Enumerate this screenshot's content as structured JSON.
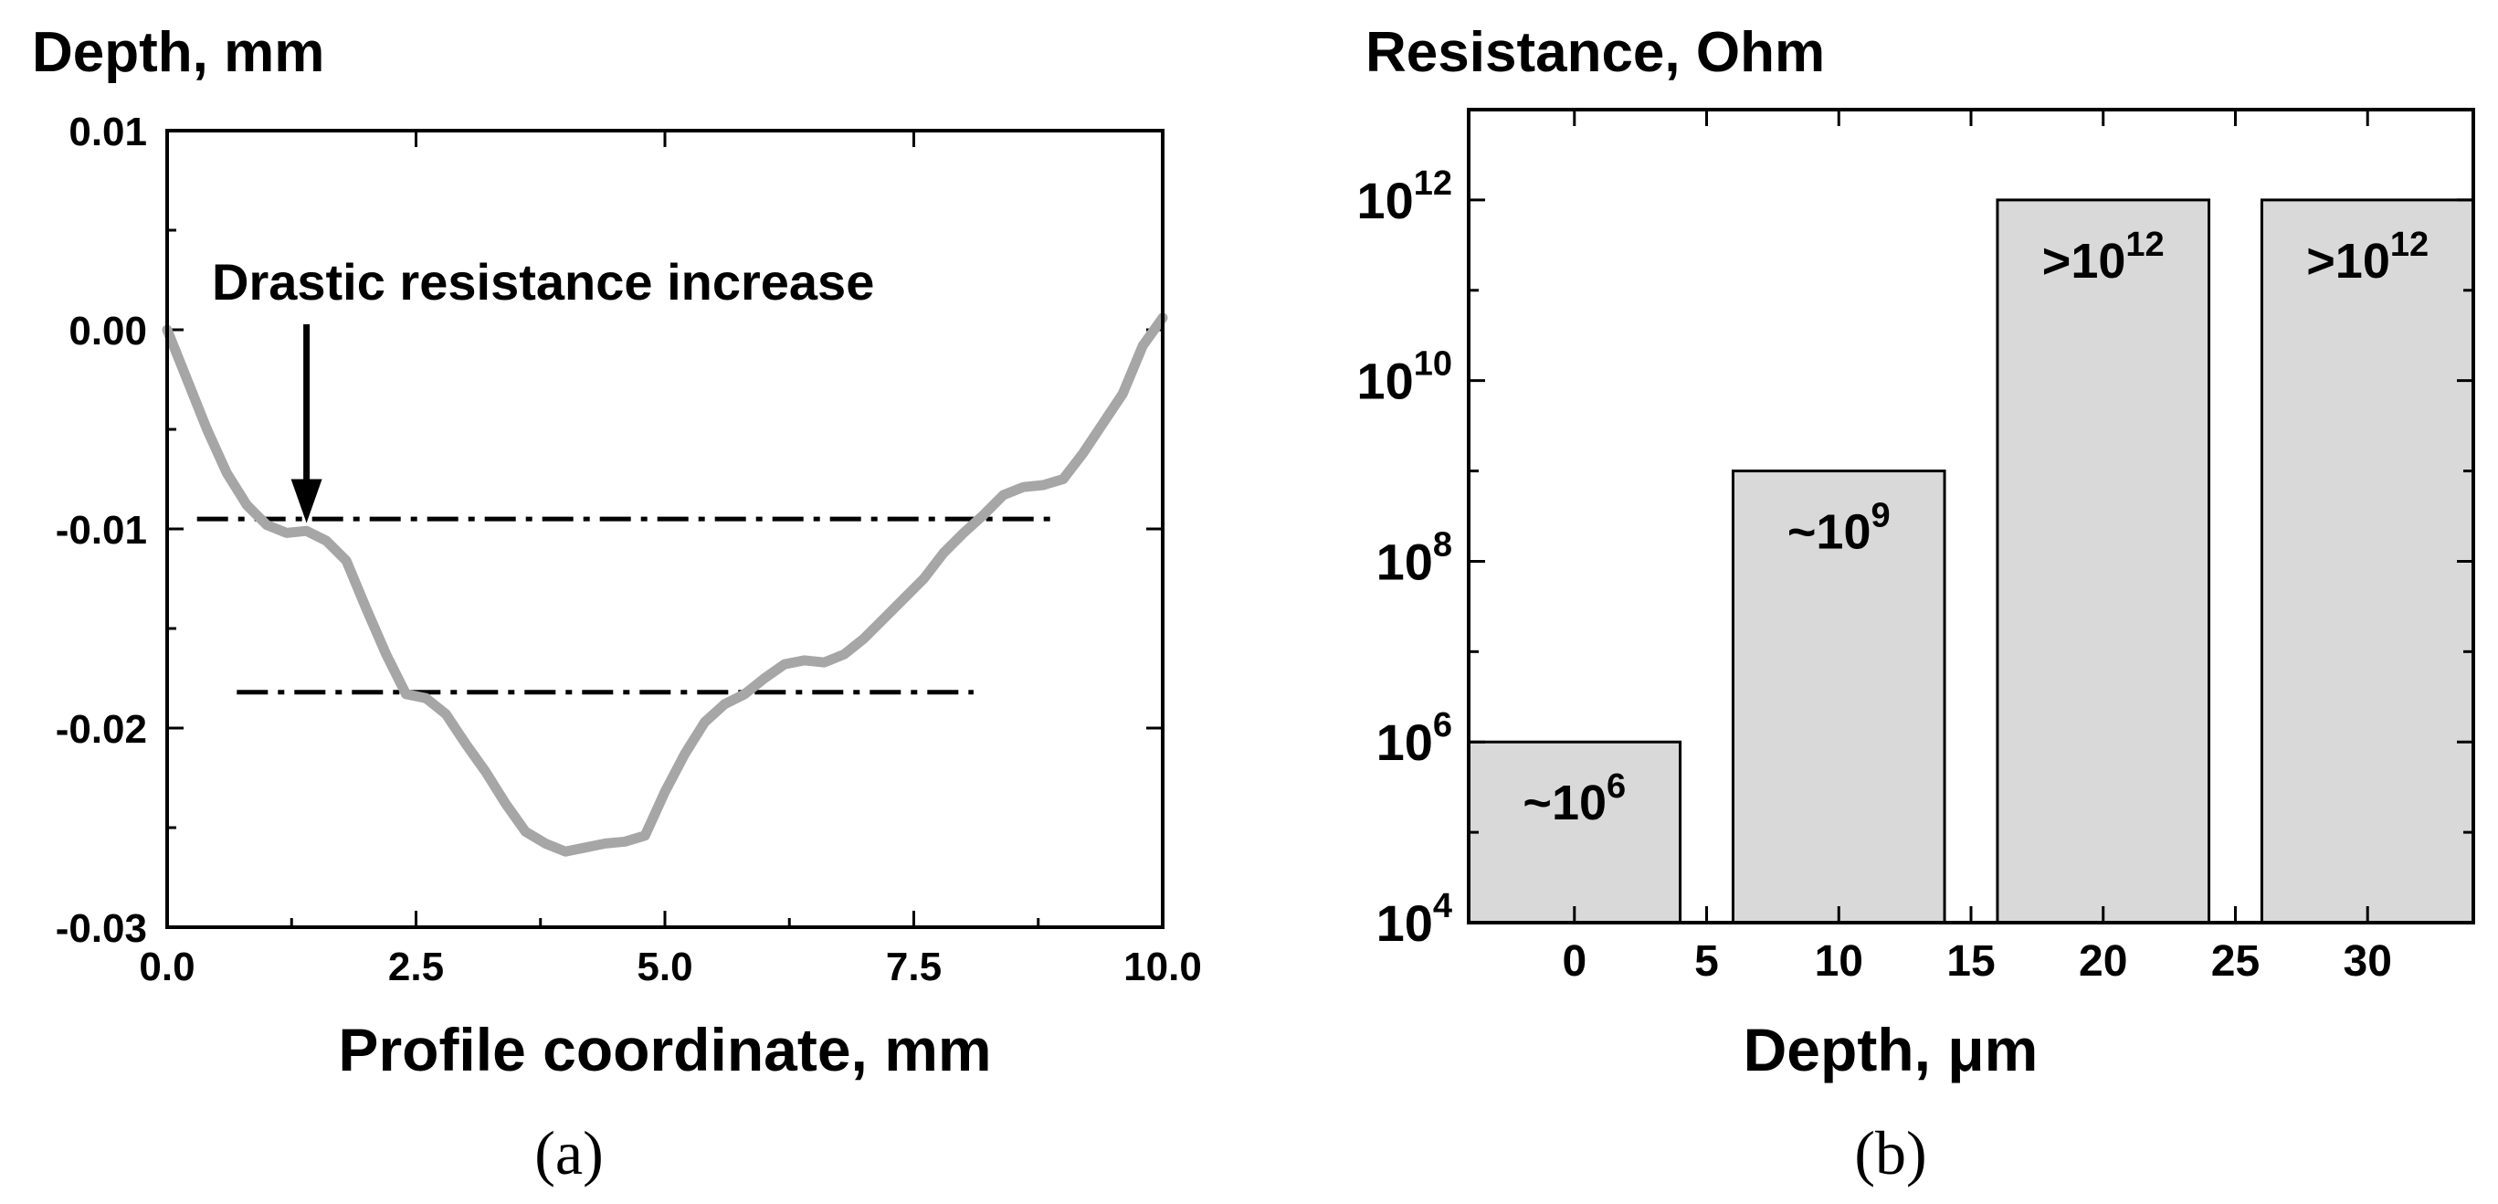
{
  "chart_data": [
    {
      "type": "line",
      "panel_label": "(a)",
      "title": "Depth, mm",
      "xlabel": "Profile coordinate, mm",
      "ylabel": "Depth, mm",
      "xlim": [
        0,
        10
      ],
      "ylim": [
        -0.03,
        0.01
      ],
      "xticks": [
        "0.0",
        "2.5",
        "5.0",
        "7.5",
        "10.0"
      ],
      "xtick_values": [
        0,
        2.5,
        5,
        7.5,
        10
      ],
      "yticks": [
        "0.01",
        "0.00",
        "-0.01",
        "-0.02",
        "-0.03"
      ],
      "ytick_values": [
        0.01,
        0,
        -0.01,
        -0.02,
        -0.03
      ],
      "series": [
        {
          "name": "profile",
          "color": "#a6a6a6",
          "x": [
            0,
            0.2,
            0.4,
            0.6,
            0.8,
            1.0,
            1.2,
            1.4,
            1.6,
            1.8,
            2.0,
            2.2,
            2.4,
            2.6,
            2.8,
            3.0,
            3.2,
            3.4,
            3.6,
            3.8,
            4.0,
            4.2,
            4.4,
            4.6,
            4.8,
            5.0,
            5.2,
            5.4,
            5.6,
            5.8,
            6.0,
            6.2,
            6.4,
            6.6,
            6.8,
            7.0,
            7.2,
            7.4,
            7.6,
            7.8,
            8.0,
            8.2,
            8.4,
            8.6,
            8.8,
            9.0,
            9.2,
            9.4,
            9.6,
            9.8,
            10.0
          ],
          "y": [
            0.0,
            -0.0025,
            -0.005,
            -0.0072,
            -0.0088,
            -0.0098,
            -0.0102,
            -0.0101,
            -0.0106,
            -0.0116,
            -0.014,
            -0.0163,
            -0.0183,
            -0.0185,
            -0.0193,
            -0.0208,
            -0.0222,
            -0.0238,
            -0.0252,
            -0.0258,
            -0.0262,
            -0.026,
            -0.0258,
            -0.0257,
            -0.0254,
            -0.0232,
            -0.0213,
            -0.0197,
            -0.0188,
            -0.0183,
            -0.0175,
            -0.0168,
            -0.0166,
            -0.0167,
            -0.0163,
            -0.0155,
            -0.0145,
            -0.0135,
            -0.0125,
            -0.0112,
            -0.0102,
            -0.0093,
            -0.0083,
            -0.0079,
            -0.0078,
            -0.0075,
            -0.0062,
            -0.0047,
            -0.0032,
            -0.0008,
            0.0006
          ]
        }
      ],
      "reference_lines": [
        {
          "name": "upper-dash-dot-line",
          "y": -0.0095,
          "x_start": 0.3,
          "x_end": 8.9
        },
        {
          "name": "lower-dash-dot-line",
          "y": -0.0182,
          "x_start": 0.7,
          "x_end": 8.1
        }
      ],
      "annotation": {
        "text": "Drastic resistance increase",
        "arrow_x": 1.4,
        "arrow_y": -0.0097
      }
    },
    {
      "type": "bar",
      "panel_label": "(b)",
      "title": "Resistance, Ohm",
      "xlabel": "Depth, μm",
      "ylabel": "Resistance, Ohm",
      "y_scale": "log",
      "ylim": [
        10000,
        10000000000000
      ],
      "xlim": [
        -4,
        34
      ],
      "xticks": [
        "0",
        "5",
        "10",
        "15",
        "20",
        "25",
        "30"
      ],
      "xtick_values": [
        0,
        5,
        10,
        15,
        20,
        25,
        30
      ],
      "ytick_values": [
        10000,
        1000000,
        100000000,
        10000000000,
        1000000000000
      ],
      "ytick_base": "10",
      "ytick_exponents": [
        "4",
        "6",
        "8",
        "10",
        "12"
      ],
      "bar_color": "#d9d9d9",
      "bars": [
        {
          "x_start": -4,
          "x_end": 4,
          "value": 1000000,
          "label_prefix": "~10",
          "label_exp": "6"
        },
        {
          "x_start": 6,
          "x_end": 14,
          "value": 1000000000,
          "label_prefix": "~10",
          "label_exp": "9"
        },
        {
          "x_start": 16,
          "x_end": 24,
          "value": 1000000000000,
          "label_prefix": ">10",
          "label_exp": "12"
        },
        {
          "x_start": 26,
          "x_end": 34,
          "value": 1000000000000,
          "label_prefix": ">10",
          "label_exp": "12"
        }
      ]
    }
  ]
}
